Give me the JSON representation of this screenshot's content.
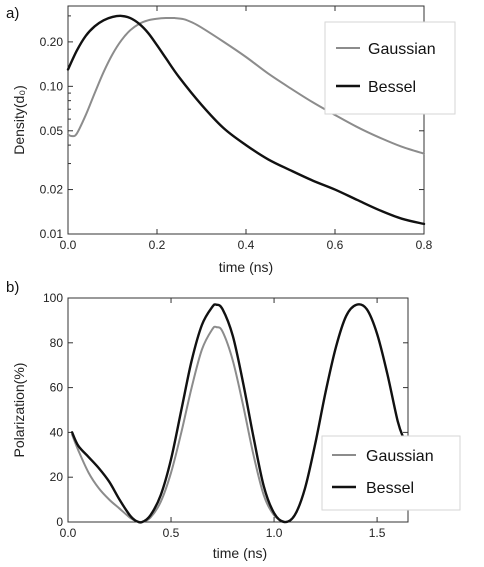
{
  "chart_data": [
    {
      "type": "line",
      "panel_label": "a)",
      "xlabel": "time (ns)",
      "ylabel": "Density(d₀)",
      "xlim": [
        0,
        0.8
      ],
      "ylim": [
        0.01,
        0.35
      ],
      "y_scale": "log",
      "x_ticks": [
        0.0,
        0.2,
        0.4,
        0.6,
        0.8
      ],
      "x_tick_labels": [
        "0.0",
        "0.2",
        "0.4",
        "0.6",
        "0.8"
      ],
      "y_ticks": [
        0.01,
        0.02,
        0.05,
        0.1,
        0.2
      ],
      "y_tick_labels": [
        "0.01",
        "0.02",
        "0.05",
        "0.10",
        "0.20"
      ],
      "legend_position": "top-right",
      "series": [
        {
          "name": "Gaussian",
          "color": "#8c8c8c",
          "x": [
            0,
            0.01,
            0.02,
            0.04,
            0.06,
            0.08,
            0.1,
            0.12,
            0.14,
            0.16,
            0.18,
            0.2,
            0.22,
            0.24,
            0.26,
            0.28,
            0.3,
            0.35,
            0.4,
            0.45,
            0.5,
            0.55,
            0.6,
            0.65,
            0.7,
            0.75,
            0.8
          ],
          "y": [
            0.047,
            0.046,
            0.048,
            0.064,
            0.09,
            0.125,
            0.165,
            0.205,
            0.24,
            0.265,
            0.28,
            0.287,
            0.29,
            0.29,
            0.285,
            0.27,
            0.25,
            0.2,
            0.158,
            0.122,
            0.097,
            0.078,
            0.064,
            0.053,
            0.045,
            0.039,
            0.035
          ]
        },
        {
          "name": "Bessel",
          "color": "#111111",
          "x": [
            0,
            0.02,
            0.04,
            0.06,
            0.08,
            0.1,
            0.12,
            0.14,
            0.16,
            0.18,
            0.2,
            0.22,
            0.25,
            0.3,
            0.35,
            0.4,
            0.45,
            0.5,
            0.55,
            0.6,
            0.65,
            0.7,
            0.75,
            0.8
          ],
          "y": [
            0.13,
            0.175,
            0.22,
            0.255,
            0.28,
            0.295,
            0.3,
            0.29,
            0.265,
            0.23,
            0.19,
            0.155,
            0.115,
            0.075,
            0.052,
            0.04,
            0.032,
            0.027,
            0.023,
            0.02,
            0.017,
            0.0145,
            0.0127,
            0.0117
          ]
        }
      ]
    },
    {
      "type": "line",
      "panel_label": "b)",
      "xlabel": "time (ns)",
      "ylabel": "Polarization(%)",
      "xlim": [
        0,
        1.65
      ],
      "ylim": [
        0,
        100
      ],
      "x_ticks": [
        0.0,
        0.5,
        1.0,
        1.5
      ],
      "x_tick_labels": [
        "0.0",
        "0.5",
        "1.0",
        "1.5"
      ],
      "y_ticks": [
        0,
        20,
        40,
        60,
        80,
        100
      ],
      "y_tick_labels": [
        "0",
        "20",
        "40",
        "60",
        "80",
        "100"
      ],
      "legend_position": "bottom-right",
      "series": [
        {
          "name": "Gaussian",
          "color": "#8c8c8c",
          "x": [
            0.02,
            0.05,
            0.1,
            0.15,
            0.2,
            0.25,
            0.3,
            0.33,
            0.36,
            0.4,
            0.45,
            0.5,
            0.55,
            0.6,
            0.65,
            0.7,
            0.72,
            0.75,
            0.8,
            0.85,
            0.9,
            0.95,
            1.0,
            1.05
          ],
          "y": [
            39,
            32,
            22,
            15,
            10,
            6,
            2,
            0.5,
            0,
            2,
            9,
            22,
            40,
            60,
            77,
            86,
            87,
            85,
            72,
            52,
            30,
            12,
            3,
            0
          ]
        },
        {
          "name": "Bessel",
          "color": "#111111",
          "x": [
            0.02,
            0.05,
            0.1,
            0.15,
            0.2,
            0.25,
            0.3,
            0.33,
            0.36,
            0.4,
            0.45,
            0.5,
            0.55,
            0.6,
            0.65,
            0.7,
            0.72,
            0.75,
            0.8,
            0.85,
            0.9,
            0.95,
            1.0,
            1.05,
            1.1,
            1.15,
            1.2,
            1.25,
            1.3,
            1.35,
            1.4,
            1.45,
            1.5,
            1.55,
            1.6,
            1.63
          ],
          "y": [
            40,
            34,
            29,
            24,
            18,
            10,
            3,
            0.5,
            0,
            3,
            12,
            28,
            50,
            72,
            88,
            96,
            97,
            95,
            83,
            62,
            38,
            16,
            4,
            0,
            3,
            15,
            35,
            58,
            78,
            92,
            97,
            95,
            84,
            66,
            45,
            37
          ]
        }
      ]
    }
  ]
}
